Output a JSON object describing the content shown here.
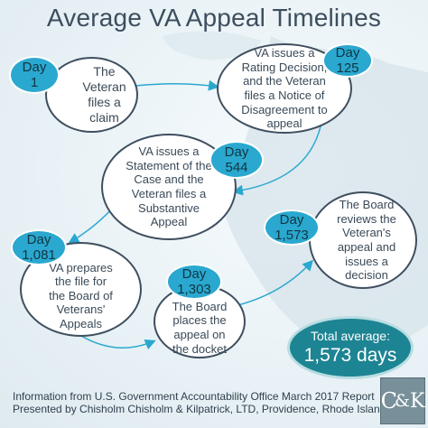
{
  "title": "Average VA Appeal Timelines",
  "steps": [
    {
      "day_label": "Day",
      "day_value": "1",
      "text": "The\nVeteran\nfiles a\nclaim"
    },
    {
      "day_label": "Day",
      "day_value": "125",
      "text": "VA issues a\nRating Decision,\nand the Veteran\nfiles a Notice of\nDisagreement to\nappeal"
    },
    {
      "day_label": "Day",
      "day_value": "544",
      "text": "VA issues a\nStatement of the\nCase and the\nVeteran files a\nSubstantive\nAppeal"
    },
    {
      "day_label": "Day",
      "day_value": "1,081",
      "text": "VA prepares\nthe file for\nthe Board of\nVeterans'\nAppeals"
    },
    {
      "day_label": "Day",
      "day_value": "1,303",
      "text": "The Board\nplaces the\nappeal on\nthe docket"
    },
    {
      "day_label": "Day",
      "day_value": "1,573",
      "text": "The Board\nreviews the\nVeteran's\nappeal and\nissues a\ndecision"
    }
  ],
  "total": {
    "label": "Total average:",
    "value": "1,573 days"
  },
  "footer": {
    "line1": "Information from U.S. Government Accountability Office March 2017 Report",
    "line2": "Presented by Chisholm Chisholm & Kilpatrick, LTD, Providence, Rhode Island"
  },
  "logo": {
    "c": "C",
    "ampersand": "&",
    "k": "K"
  },
  "colors": {
    "background": "#e9f2f6",
    "day_badge": "#2aa8cf",
    "total_badge": "#1d8493",
    "bubble_border": "#3f4f5f",
    "title_text": "#3d4e5e",
    "arrow": "#2aa8cf"
  }
}
